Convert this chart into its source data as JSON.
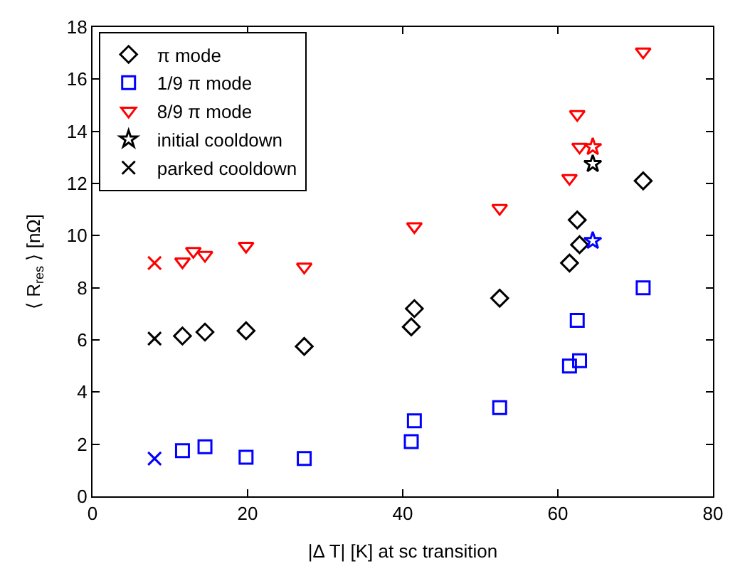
{
  "chart_data": {
    "type": "scatter",
    "xlabel": "|Δ T| [K] at sc transition",
    "ylabel": "⟨ R$_{res}$ ⟩ [nΩ]",
    "xlim": [
      0,
      80
    ],
    "xticks": [
      0,
      20,
      40,
      60,
      80
    ],
    "ylim": [
      0,
      18
    ],
    "yticks": [
      0,
      2,
      4,
      6,
      8,
      10,
      12,
      14,
      16,
      18
    ],
    "legend": "top left",
    "series": [
      {
        "name": "π mode",
        "color": "#000000",
        "marker": "diamond",
        "x": [
          11.6,
          14.5,
          19.8,
          27.3,
          41.1,
          41.5,
          52.5,
          61.5,
          62.5,
          62.8,
          71
        ],
        "values": [
          6.15,
          6.3,
          6.35,
          5.75,
          6.5,
          7.2,
          7.6,
          8.95,
          10.6,
          9.65,
          12.1
        ]
      },
      {
        "name": "1/9 π mode",
        "color": "#0000ff",
        "marker": "square",
        "x": [
          11.6,
          14.5,
          19.8,
          27.3,
          41.1,
          41.5,
          52.5,
          61.5,
          62.5,
          62.8,
          71
        ],
        "values": [
          1.75,
          1.9,
          1.5,
          1.45,
          2.1,
          2.9,
          3.4,
          5.0,
          6.75,
          5.2,
          8.0
        ]
      },
      {
        "name": "8/9 π mode",
        "color": "#ff0000",
        "marker": "triangle",
        "x": [
          11.6,
          13,
          14.5,
          19.8,
          27.3,
          41.5,
          52.5,
          61.5,
          62.5,
          62.8,
          71
        ],
        "values": [
          9.0,
          9.4,
          9.25,
          9.6,
          8.8,
          10.35,
          11.05,
          12.2,
          14.65,
          13.4,
          17.05
        ]
      },
      {
        "name": "initial cooldown",
        "color": "#000000",
        "colors": [
          "#000000",
          "#0000ff",
          "#ff0000"
        ],
        "marker": "star",
        "x": [
          64.5,
          64.5,
          64.5
        ],
        "values": [
          12.75,
          9.8,
          13.4
        ]
      },
      {
        "name": "parked cooldown",
        "color": "#000000",
        "colors": [
          "#000000",
          "#0000ff",
          "#ff0000"
        ],
        "marker": "cross",
        "x": [
          8,
          8,
          8
        ],
        "values": [
          6.05,
          1.45,
          8.95
        ]
      }
    ]
  }
}
